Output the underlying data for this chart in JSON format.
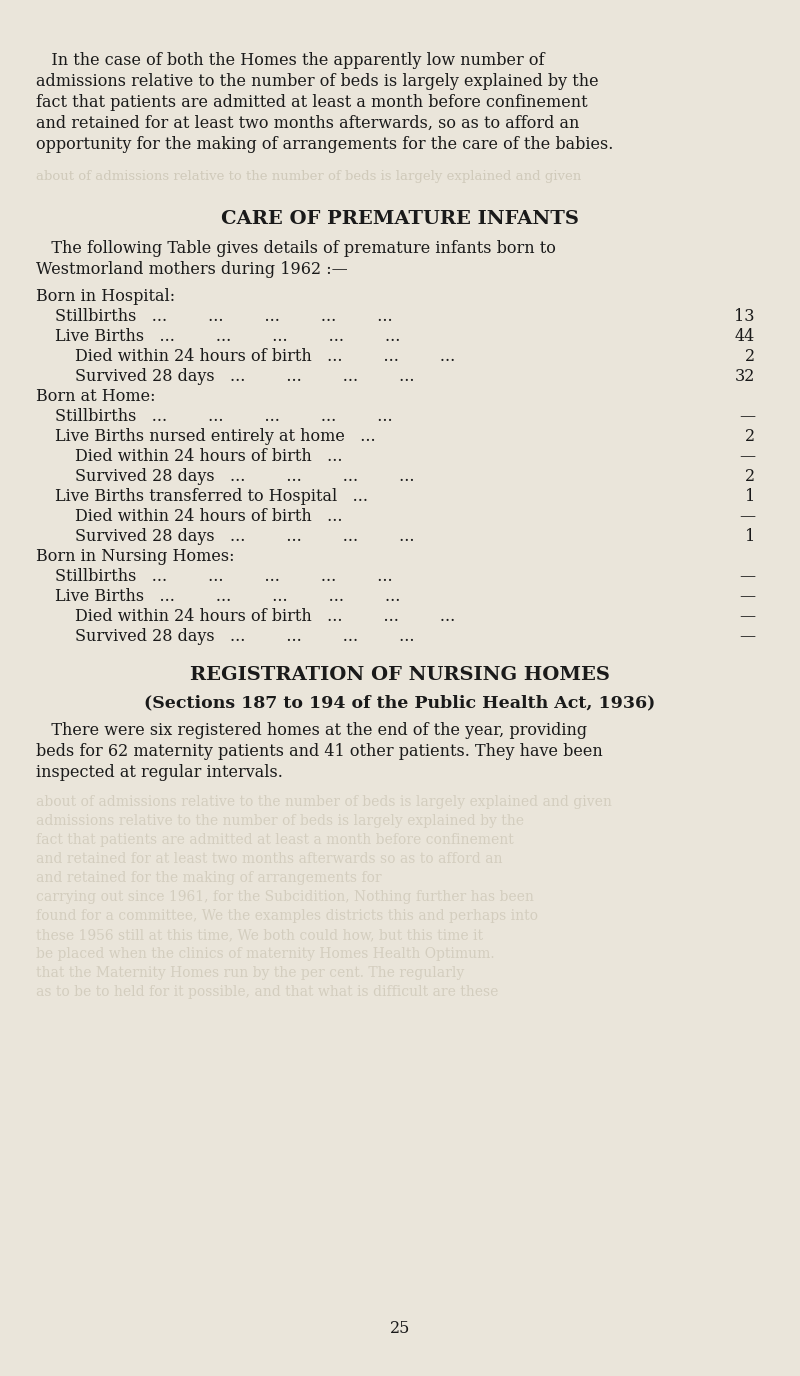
{
  "bg_color": "#EAE5DA",
  "text_color": "#1a1a1a",
  "page_number": "25",
  "intro_lines": [
    "   In the case of both the Homes the apparently low number of",
    "admissions relative to the number of beds is largely explained by the",
    "fact that patients are admitted at least a month before confinement",
    "and retained for at least two months afterwards, so as to afford an",
    "opportunity for the making of arrangements for the care of the babies."
  ],
  "section1_title": "CARE OF PREMATURE INFANTS",
  "section1_intro_lines": [
    "   The following Table gives details of premature infants born to",
    "Westmorland mothers during 1962 :—"
  ],
  "table_rows": [
    {
      "level": 0,
      "label": "Born in Hospital:",
      "value": ""
    },
    {
      "level": 1,
      "label": "Stillbirths",
      "dots5": true,
      "value": "13"
    },
    {
      "level": 1,
      "label": "Live Births",
      "dots5": true,
      "value": "44"
    },
    {
      "level": 2,
      "label": "Died within 24 hours of birth",
      "dots3": true,
      "value": "2"
    },
    {
      "level": 2,
      "label": "Survived 28 days",
      "dots4": true,
      "value": "32"
    },
    {
      "level": 0,
      "label": "Born at Home:",
      "value": ""
    },
    {
      "level": 1,
      "label": "Stillbirths",
      "dots5": true,
      "value": "—"
    },
    {
      "level": 1,
      "label": "Live Births nursed entirely at home",
      "dots2": true,
      "value": "2"
    },
    {
      "level": 2,
      "label": "Died within 24 hours of birth",
      "dots2": true,
      "value": "—"
    },
    {
      "level": 2,
      "label": "Survived 28 days",
      "dots4": true,
      "value": "2"
    },
    {
      "level": 1,
      "label": "Live Births transferred to Hospital",
      "dots2": true,
      "value": "1"
    },
    {
      "level": 2,
      "label": "Died within 24 hours of birth",
      "dots2": true,
      "value": "—"
    },
    {
      "level": 2,
      "label": "Survived 28 days",
      "dots4": true,
      "value": "1"
    },
    {
      "level": 0,
      "label": "Born in Nursing Homes:",
      "value": ""
    },
    {
      "level": 1,
      "label": "Stillbirths",
      "dots5": true,
      "value": "—"
    },
    {
      "level": 1,
      "label": "Live Births",
      "dots5": true,
      "value": "—"
    },
    {
      "level": 2,
      "label": "Died within 24 hours of birth",
      "dots3": true,
      "value": "—"
    },
    {
      "level": 2,
      "label": "Survived 28 days",
      "dots4": true,
      "value": "—"
    }
  ],
  "section2_title": "REGISTRATION OF NURSING HOMES",
  "section2_subtitle": "(Sections 187 to 194 of the Public Health Act, 1936)",
  "section2_body_lines": [
    "   There were six registered homes at the end of the year, providing",
    "beds for 62 maternity patients and 41 other patients. They have been",
    "inspected at regular intervals."
  ],
  "ghost_lines": [
    "about of admissions relative to the number of beds is largely explained and given",
    "admissions relative to the number of beds is largely explained by the",
    "fact that patients are admitted at least a month before confinement",
    "and retained for at least two months afterwards so as to afford an",
    "and retained for the making of arrangements for",
    "carrying out since 1961, for the Subcidition, Nothing further has been",
    "found for a committee, We the examples districts this and perhaps into",
    "these 1956 still at this time, We both could how, but this time it",
    "be placed when the clinics of maternity Homes Health Optimum.",
    "that the Maternity Homes run by the per cent. The regularly",
    "as to be to held for it possible, and that what is difficult are these"
  ],
  "font_size_body": 11.5,
  "font_size_title": 14,
  "font_size_subtitle": 12.5
}
